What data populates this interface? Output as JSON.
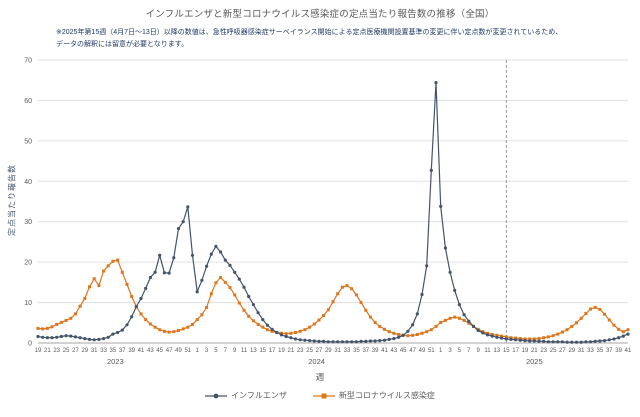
{
  "title": "インフルエンザと新型コロナウイルス感染症の定点当たり報告数の推移（全国）",
  "note": "※2025年第15週（4月7日～13日）以降の数値は、急性呼吸器感染症サーベイランス開始による定点医療機関設置基準の変更に伴い定点数が変更されているため、\nデータの解釈には留意が必要となります。",
  "chart_data": {
    "type": "line",
    "title": "インフルエンザと新型コロナウイルス感染症の定点当たり報告数の推移（全国）",
    "ylabel": "定点当たり報告数",
    "xlabel": "週",
    "ylim": [
      0,
      70
    ],
    "ytick_step": 10,
    "grid": true,
    "legend_position": "bottom",
    "x_years": [
      {
        "year": "2023",
        "start_week": 19,
        "end_week": 52
      },
      {
        "year": "2024",
        "start_week": 1,
        "end_week": 52
      },
      {
        "year": "2025",
        "start_week": 1,
        "end_week": 41
      }
    ],
    "annotation_vline": {
      "year": "2025",
      "week": 15,
      "style": "dashed"
    },
    "colors": {
      "grid": "#e0e0e0",
      "axis": "#a6a6a6",
      "tick_text": "#595959",
      "vline": "#7f7f7f"
    },
    "series": [
      {
        "name": "インフルエンザ",
        "color": "#44546a",
        "marker": "circle",
        "values": [
          1.6,
          1.4,
          1.3,
          1.3,
          1.4,
          1.6,
          1.8,
          1.7,
          1.5,
          1.3,
          1.1,
          0.9,
          0.8,
          0.9,
          1.1,
          1.4,
          2.2,
          2.6,
          3.2,
          4.5,
          6.5,
          9.0,
          11.0,
          13.5,
          16.2,
          17.5,
          21.7,
          17.4,
          17.3,
          21.1,
          28.3,
          30.0,
          33.7,
          21.7,
          12.7,
          15.5,
          19.0,
          22.0,
          23.9,
          22.5,
          20.5,
          19.2,
          17.5,
          15.8,
          13.8,
          11.5,
          9.5,
          7.5,
          5.8,
          4.4,
          3.4,
          2.6,
          2.0,
          1.6,
          1.3,
          1.0,
          0.8,
          0.7,
          0.6,
          0.5,
          0.4,
          0.4,
          0.3,
          0.3,
          0.3,
          0.3,
          0.3,
          0.3,
          0.3,
          0.4,
          0.4,
          0.5,
          0.5,
          0.6,
          0.7,
          0.9,
          1.1,
          1.4,
          1.9,
          2.9,
          4.5,
          7.2,
          12.0,
          19.1,
          42.7,
          64.4,
          33.8,
          23.5,
          17.5,
          13.0,
          9.5,
          7.0,
          5.4,
          4.1,
          3.1,
          2.5,
          2.0,
          1.7,
          1.4,
          1.2,
          1.0,
          0.9,
          0.8,
          0.7,
          0.6,
          0.5,
          0.5,
          0.4,
          0.4,
          0.3,
          0.3,
          0.3,
          0.3,
          0.2,
          0.2,
          0.2,
          0.2,
          0.3,
          0.3,
          0.4,
          0.5,
          0.6,
          0.8,
          1.0,
          1.3,
          1.7,
          2.2
        ]
      },
      {
        "name": "新型コロナウイルス感染症",
        "color": "#dd761c",
        "marker": "square",
        "values": [
          3.6,
          3.5,
          3.6,
          4.0,
          4.6,
          5.1,
          5.6,
          6.1,
          7.2,
          9.1,
          11.0,
          13.9,
          15.9,
          14.2,
          17.8,
          19.1,
          20.2,
          20.5,
          17.5,
          14.5,
          11.5,
          9.0,
          7.2,
          5.8,
          4.7,
          3.9,
          3.3,
          2.9,
          2.7,
          2.8,
          3.1,
          3.5,
          3.9,
          4.6,
          5.8,
          7.0,
          8.8,
          12.2,
          14.9,
          16.2,
          15.0,
          13.7,
          11.9,
          9.9,
          8.1,
          6.6,
          5.5,
          4.6,
          3.9,
          3.3,
          2.9,
          2.6,
          2.4,
          2.3,
          2.4,
          2.6,
          2.9,
          3.3,
          3.9,
          4.7,
          5.7,
          6.8,
          8.2,
          10.2,
          12.2,
          13.8,
          14.2,
          13.4,
          11.9,
          10.0,
          8.1,
          6.4,
          5.1,
          4.1,
          3.4,
          2.8,
          2.4,
          2.1,
          1.9,
          1.8,
          1.9,
          2.1,
          2.4,
          2.8,
          3.3,
          4.1,
          5.1,
          5.6,
          6.1,
          6.4,
          6.1,
          5.6,
          4.9,
          4.1,
          3.4,
          2.8,
          2.4,
          2.1,
          1.9,
          1.7,
          1.5,
          1.3,
          1.2,
          1.1,
          1.0,
          1.0,
          1.0,
          1.1,
          1.3,
          1.5,
          1.8,
          2.2,
          2.7,
          3.3,
          4.1,
          5.0,
          6.1,
          7.3,
          8.4,
          8.8,
          8.3,
          7.1,
          5.7,
          4.4,
          3.4,
          2.8,
          3.3
        ]
      }
    ]
  }
}
